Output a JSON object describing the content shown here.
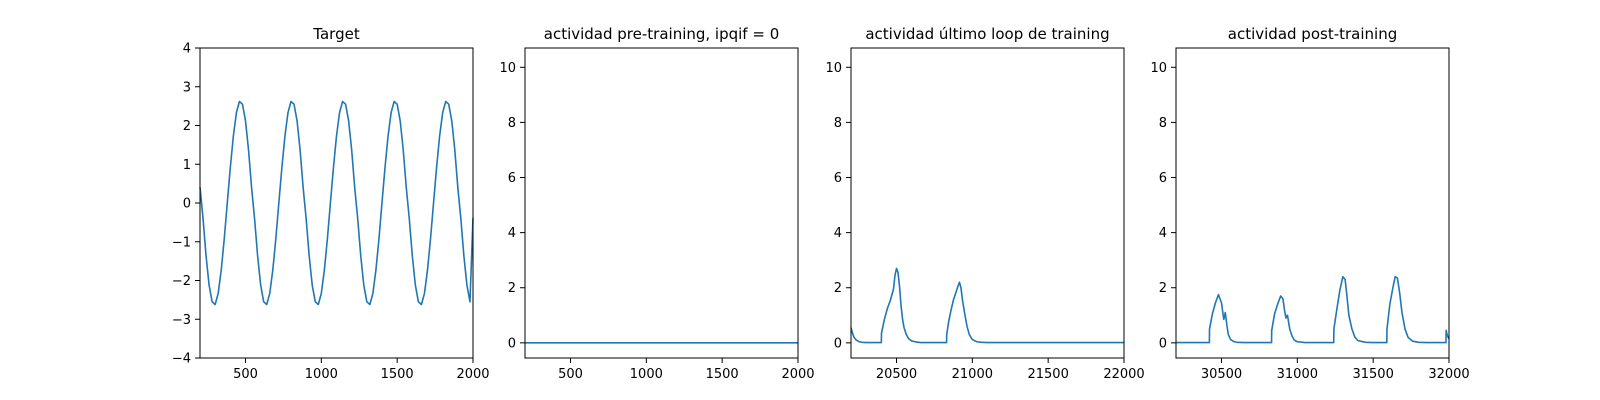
{
  "chart_data": [
    {
      "type": "line",
      "title": "Target",
      "xlim": [
        200,
        2000
      ],
      "ylim": [
        -4,
        4
      ],
      "xticks": [
        500,
        1000,
        1500,
        2000
      ],
      "xtick_labels": [
        "500",
        "1000",
        "1500",
        "2000"
      ],
      "yticks": [
        -4,
        -3,
        -2,
        -1,
        0,
        1,
        2,
        3,
        4
      ],
      "ytick_labels": [
        "−4",
        "−3",
        "−2",
        "−1",
        "0",
        "1",
        "2",
        "3",
        "4"
      ],
      "grid": false,
      "series": [
        {
          "color": "#1f77b4",
          "x": [
            200,
            220,
            240,
            260,
            280,
            300,
            320,
            340,
            360,
            380,
            400,
            420,
            440,
            460,
            480,
            500,
            520,
            540,
            560,
            580,
            600,
            620,
            640,
            660,
            680,
            700,
            720,
            740,
            760,
            780,
            800,
            820,
            840,
            860,
            880,
            900,
            920,
            940,
            960,
            980,
            1000,
            1020,
            1040,
            1060,
            1080,
            1100,
            1120,
            1140,
            1160,
            1180,
            1200,
            1220,
            1240,
            1260,
            1280,
            1300,
            1320,
            1340,
            1360,
            1380,
            1400,
            1420,
            1440,
            1460,
            1480,
            1500,
            1520,
            1540,
            1560,
            1580,
            1600,
            1620,
            1640,
            1660,
            1680,
            1700,
            1720,
            1740,
            1760,
            1780,
            1800,
            1820,
            1840,
            1860,
            1880,
            1900,
            1920,
            1940,
            1960,
            1980,
            2000
          ],
          "y": [
            0.41,
            -0.4,
            -1.37,
            -2.12,
            -2.55,
            -2.62,
            -2.33,
            -1.73,
            -0.92,
            0.01,
            0.92,
            1.73,
            2.33,
            2.62,
            2.55,
            2.12,
            1.37,
            0.4,
            -0.41,
            -1.37,
            -2.12,
            -2.55,
            -2.62,
            -2.33,
            -1.73,
            -0.92,
            0.01,
            0.92,
            1.73,
            2.33,
            2.62,
            2.55,
            2.12,
            1.37,
            0.4,
            -0.41,
            -1.37,
            -2.12,
            -2.55,
            -2.62,
            -2.33,
            -1.73,
            -0.92,
            0.01,
            0.92,
            1.73,
            2.33,
            2.62,
            2.55,
            2.12,
            1.37,
            0.4,
            -0.41,
            -1.37,
            -2.12,
            -2.55,
            -2.62,
            -2.33,
            -1.73,
            -0.92,
            0.01,
            0.92,
            1.73,
            2.33,
            2.62,
            2.55,
            2.12,
            1.37,
            0.4,
            -0.41,
            -1.37,
            -2.12,
            -2.55,
            -2.62,
            -2.33,
            -1.73,
            -0.92,
            0.01,
            0.92,
            1.73,
            2.33,
            2.62,
            2.55,
            2.12,
            1.37,
            0.4,
            -0.41,
            -1.37,
            -2.12,
            -2.55,
            -0.38
          ]
        }
      ]
    },
    {
      "type": "line",
      "title": "actividad pre-training, ipqif = 0",
      "xlim": [
        200,
        2000
      ],
      "ylim": [
        -0.55,
        10.7
      ],
      "xticks": [
        500,
        1000,
        1500,
        2000
      ],
      "xtick_labels": [
        "500",
        "1000",
        "1500",
        "2000"
      ],
      "yticks": [
        0,
        2,
        4,
        6,
        8,
        10
      ],
      "ytick_labels": [
        "0",
        "2",
        "4",
        "6",
        "8",
        "10"
      ],
      "grid": false,
      "series": [
        {
          "color": "#1f77b4",
          "x": [
            200,
            2000
          ],
          "y": [
            0,
            0
          ]
        }
      ]
    },
    {
      "type": "line",
      "title": "actividad último loop de training",
      "xlim": [
        20200,
        22000
      ],
      "ylim": [
        -0.55,
        10.7
      ],
      "xticks": [
        20500,
        21000,
        21500,
        22000
      ],
      "xtick_labels": [
        "20500",
        "21000",
        "21500",
        "22000"
      ],
      "yticks": [
        0,
        2,
        4,
        6,
        8,
        10
      ],
      "ytick_labels": [
        "0",
        "2",
        "4",
        "6",
        "8",
        "10"
      ],
      "grid": false,
      "series": [
        {
          "color": "#1f77b4",
          "x": [
            20200,
            20210,
            20220,
            20235,
            20250,
            20270,
            20300,
            20350,
            20400,
            20401,
            20420,
            20440,
            20460,
            20480,
            20490,
            20500,
            20510,
            20520,
            20530,
            20540,
            20550,
            20565,
            20580,
            20600,
            20630,
            20660,
            20700,
            20750,
            20830,
            20831,
            20845,
            20860,
            20875,
            20890,
            20905,
            20915,
            20925,
            20935,
            20950,
            20965,
            20980,
            21000,
            21030,
            21060,
            21100,
            21150,
            21200,
            21400,
            21600,
            21800,
            22000
          ],
          "y": [
            0.55,
            0.35,
            0.2,
            0.1,
            0.05,
            0.02,
            0.01,
            0.01,
            0.01,
            0.35,
            0.85,
            1.25,
            1.55,
            1.95,
            2.45,
            2.7,
            2.55,
            2.05,
            1.35,
            0.85,
            0.55,
            0.3,
            0.15,
            0.07,
            0.03,
            0.01,
            0.01,
            0.01,
            0.01,
            0.3,
            0.8,
            1.2,
            1.55,
            1.8,
            2.05,
            2.2,
            2.0,
            1.55,
            1.05,
            0.6,
            0.3,
            0.12,
            0.04,
            0.02,
            0.01,
            0.01,
            0.01,
            0.01,
            0.01,
            0.01,
            0.01
          ]
        }
      ]
    },
    {
      "type": "line",
      "title": "actividad post-training",
      "xlim": [
        30200,
        32000
      ],
      "ylim": [
        -0.55,
        10.7
      ],
      "xticks": [
        30500,
        31000,
        31500,
        32000
      ],
      "xtick_labels": [
        "30500",
        "31000",
        "31500",
        "32000"
      ],
      "yticks": [
        0,
        2,
        4,
        6,
        8,
        10
      ],
      "ytick_labels": [
        "0",
        "2",
        "4",
        "6",
        "8",
        "10"
      ],
      "grid": false,
      "series": [
        {
          "color": "#1f77b4",
          "x": [
            30200,
            30300,
            30420,
            30421,
            30440,
            30460,
            30480,
            30500,
            30515,
            30525,
            30535,
            30545,
            30560,
            30580,
            30600,
            30650,
            30700,
            30760,
            30830,
            30831,
            30850,
            30870,
            30890,
            30905,
            30915,
            30925,
            30935,
            30950,
            30965,
            30980,
            31000,
            31050,
            31100,
            31150,
            31200,
            31240,
            31241,
            31260,
            31280,
            31300,
            31315,
            31325,
            31340,
            31360,
            31380,
            31400,
            31450,
            31500,
            31550,
            31590,
            31591,
            31610,
            31630,
            31645,
            31660,
            31675,
            31690,
            31710,
            31730,
            31760,
            31800,
            31850,
            31900,
            31960,
            31980,
            31981,
            31990,
            32000
          ],
          "y": [
            0.01,
            0.01,
            0.01,
            0.5,
            1.05,
            1.45,
            1.75,
            1.45,
            0.85,
            1.1,
            0.65,
            0.3,
            0.12,
            0.05,
            0.02,
            0.01,
            0.01,
            0.01,
            0.01,
            0.45,
            1.05,
            1.4,
            1.7,
            1.6,
            1.2,
            0.9,
            1.0,
            0.5,
            0.25,
            0.1,
            0.04,
            0.01,
            0.01,
            0.01,
            0.01,
            0.01,
            0.5,
            1.2,
            1.9,
            2.4,
            2.3,
            1.8,
            1.0,
            0.5,
            0.2,
            0.08,
            0.02,
            0.01,
            0.01,
            0.01,
            0.5,
            1.4,
            2.0,
            2.4,
            2.35,
            1.8,
            1.1,
            0.5,
            0.2,
            0.06,
            0.02,
            0.01,
            0.01,
            0.01,
            0.01,
            0.45,
            0.25,
            0.15
          ]
        }
      ]
    }
  ]
}
